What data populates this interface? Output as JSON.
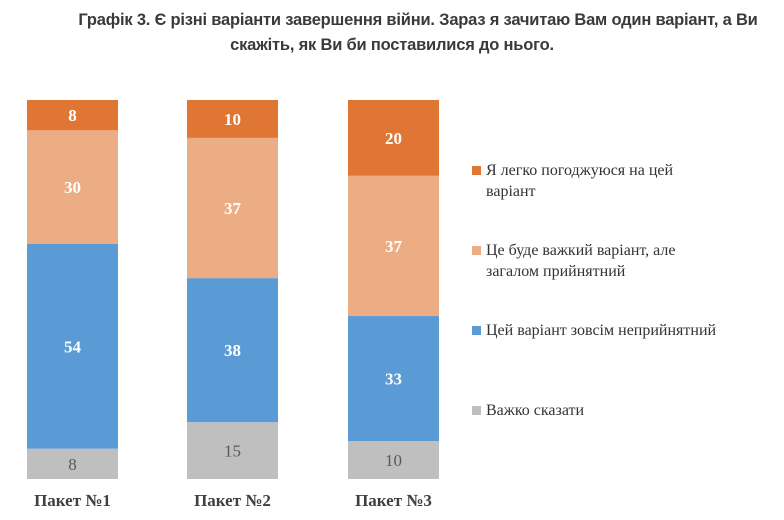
{
  "title": {
    "line1": "Графік 3. Є різні варіанти завершення війни. Зараз я зачитаю Вам один варіант, а Ви",
    "line2": "скажіть, як Ви би поставилися до нього."
  },
  "chart_data": {
    "type": "bar",
    "stacked": true,
    "orientation": "vertical",
    "title": "Графік 3. Є різні варіанти завершення війни. Зараз я зачитаю Вам один варіант, а Ви скажіть, як Ви би поставилися до нього.",
    "xlabel": "",
    "ylabel": "",
    "ylim": [
      0,
      100
    ],
    "grid": false,
    "legend_position": "right",
    "categories": [
      "Пакет №1",
      "Пакет №2",
      "Пакет №3"
    ],
    "series": [
      {
        "name": "Важко сказати",
        "color": "#bfbfbf",
        "label_color": "#595959",
        "label_bold": false,
        "values": [
          8,
          15,
          10
        ]
      },
      {
        "name": "Цей варіант зовсім неприйнятний",
        "color": "#5b9bd5",
        "label_color": "#ffffff",
        "label_bold": true,
        "values": [
          54,
          38,
          33
        ]
      },
      {
        "name": "Це буде важкий варіант, але загалом прийнятний",
        "color": "#edad84",
        "label_color": "#ffffff",
        "label_bold": true,
        "values": [
          30,
          37,
          37
        ]
      },
      {
        "name": "Я легко погоджуюся на цей варіант",
        "color": "#e07634",
        "label_color": "#ffffff",
        "label_bold": true,
        "values": [
          8,
          10,
          20
        ]
      }
    ]
  },
  "legend": {
    "items": [
      {
        "line1": "Я легко погоджуюся на цей",
        "line2": "варіант",
        "color": "#e07634"
      },
      {
        "line1": "Це буде важкий варіант, але",
        "line2": "загалом прийнятний",
        "color": "#edad84"
      },
      {
        "line1": "Цей варіант зовсім неприйнятний",
        "line2": "",
        "color": "#5b9bd5"
      },
      {
        "line1": "Важко сказати",
        "line2": "",
        "color": "#bfbfbf"
      }
    ]
  }
}
